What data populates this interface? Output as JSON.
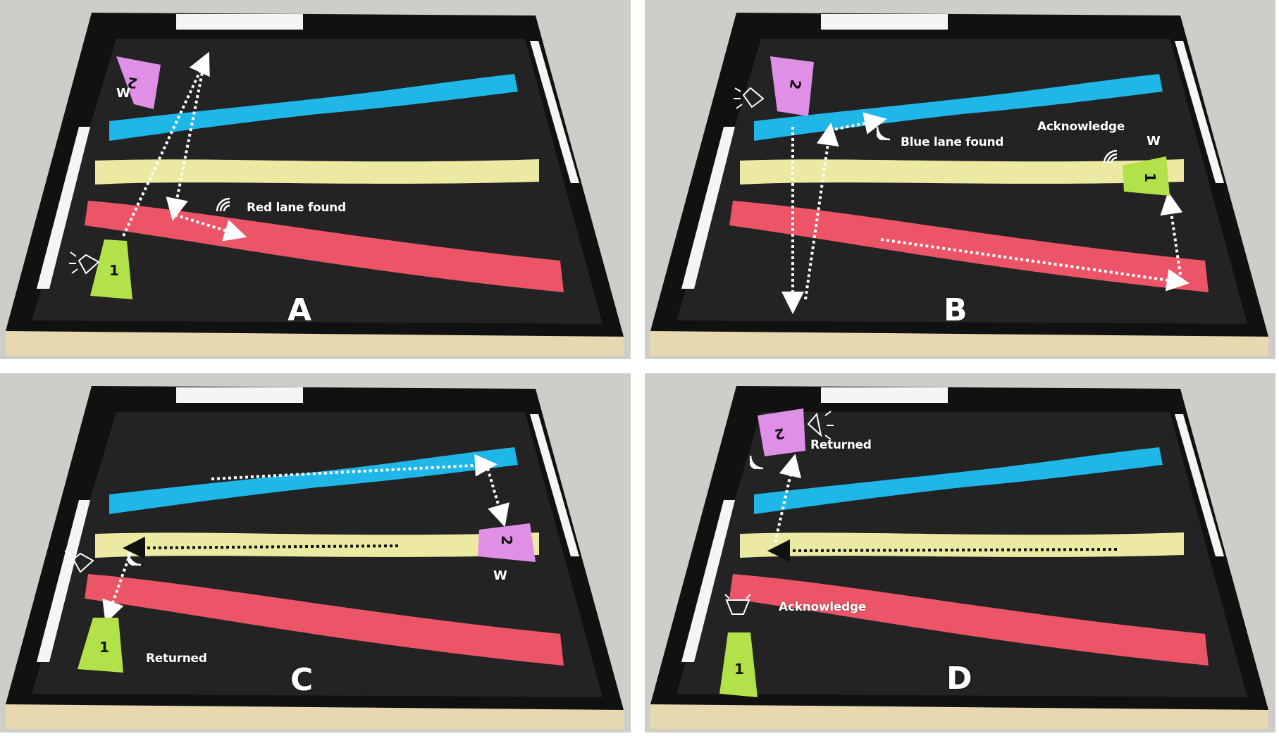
{
  "panels": [
    {
      "id": "A",
      "letter": "A",
      "annotations": [
        "Red lane found"
      ],
      "robot_1": {
        "number": "1"
      },
      "robot_2": {
        "number": "2"
      },
      "waiting_label": "W"
    },
    {
      "id": "B",
      "letter": "B",
      "annotations": [
        "Blue lane found",
        "Acknowledge"
      ],
      "robot_1": {
        "number": "1"
      },
      "robot_2": {
        "number": "2"
      },
      "waiting_label": "W"
    },
    {
      "id": "C",
      "letter": "C",
      "annotations": [
        "Returned"
      ],
      "robot_1": {
        "number": "1"
      },
      "robot_2": {
        "number": "2"
      },
      "waiting_label": "W"
    },
    {
      "id": "D",
      "letter": "D",
      "annotations": [
        "Returned",
        "Acknowledge"
      ],
      "robot_1": {
        "number": "1"
      },
      "robot_2": {
        "number": "2"
      }
    }
  ],
  "colors": {
    "arena_floor": "#232323",
    "arena_wall": "#111111",
    "arena_rim": "#e8d8b0",
    "blue_lane": "#1fb6e8",
    "yellow_lane": "#eceaa2",
    "red_lane": "#ec5468",
    "robot_1": "#b3e14a",
    "robot_2": "#e08fe6",
    "path_white": "#ffffff",
    "path_black": "#111111"
  }
}
